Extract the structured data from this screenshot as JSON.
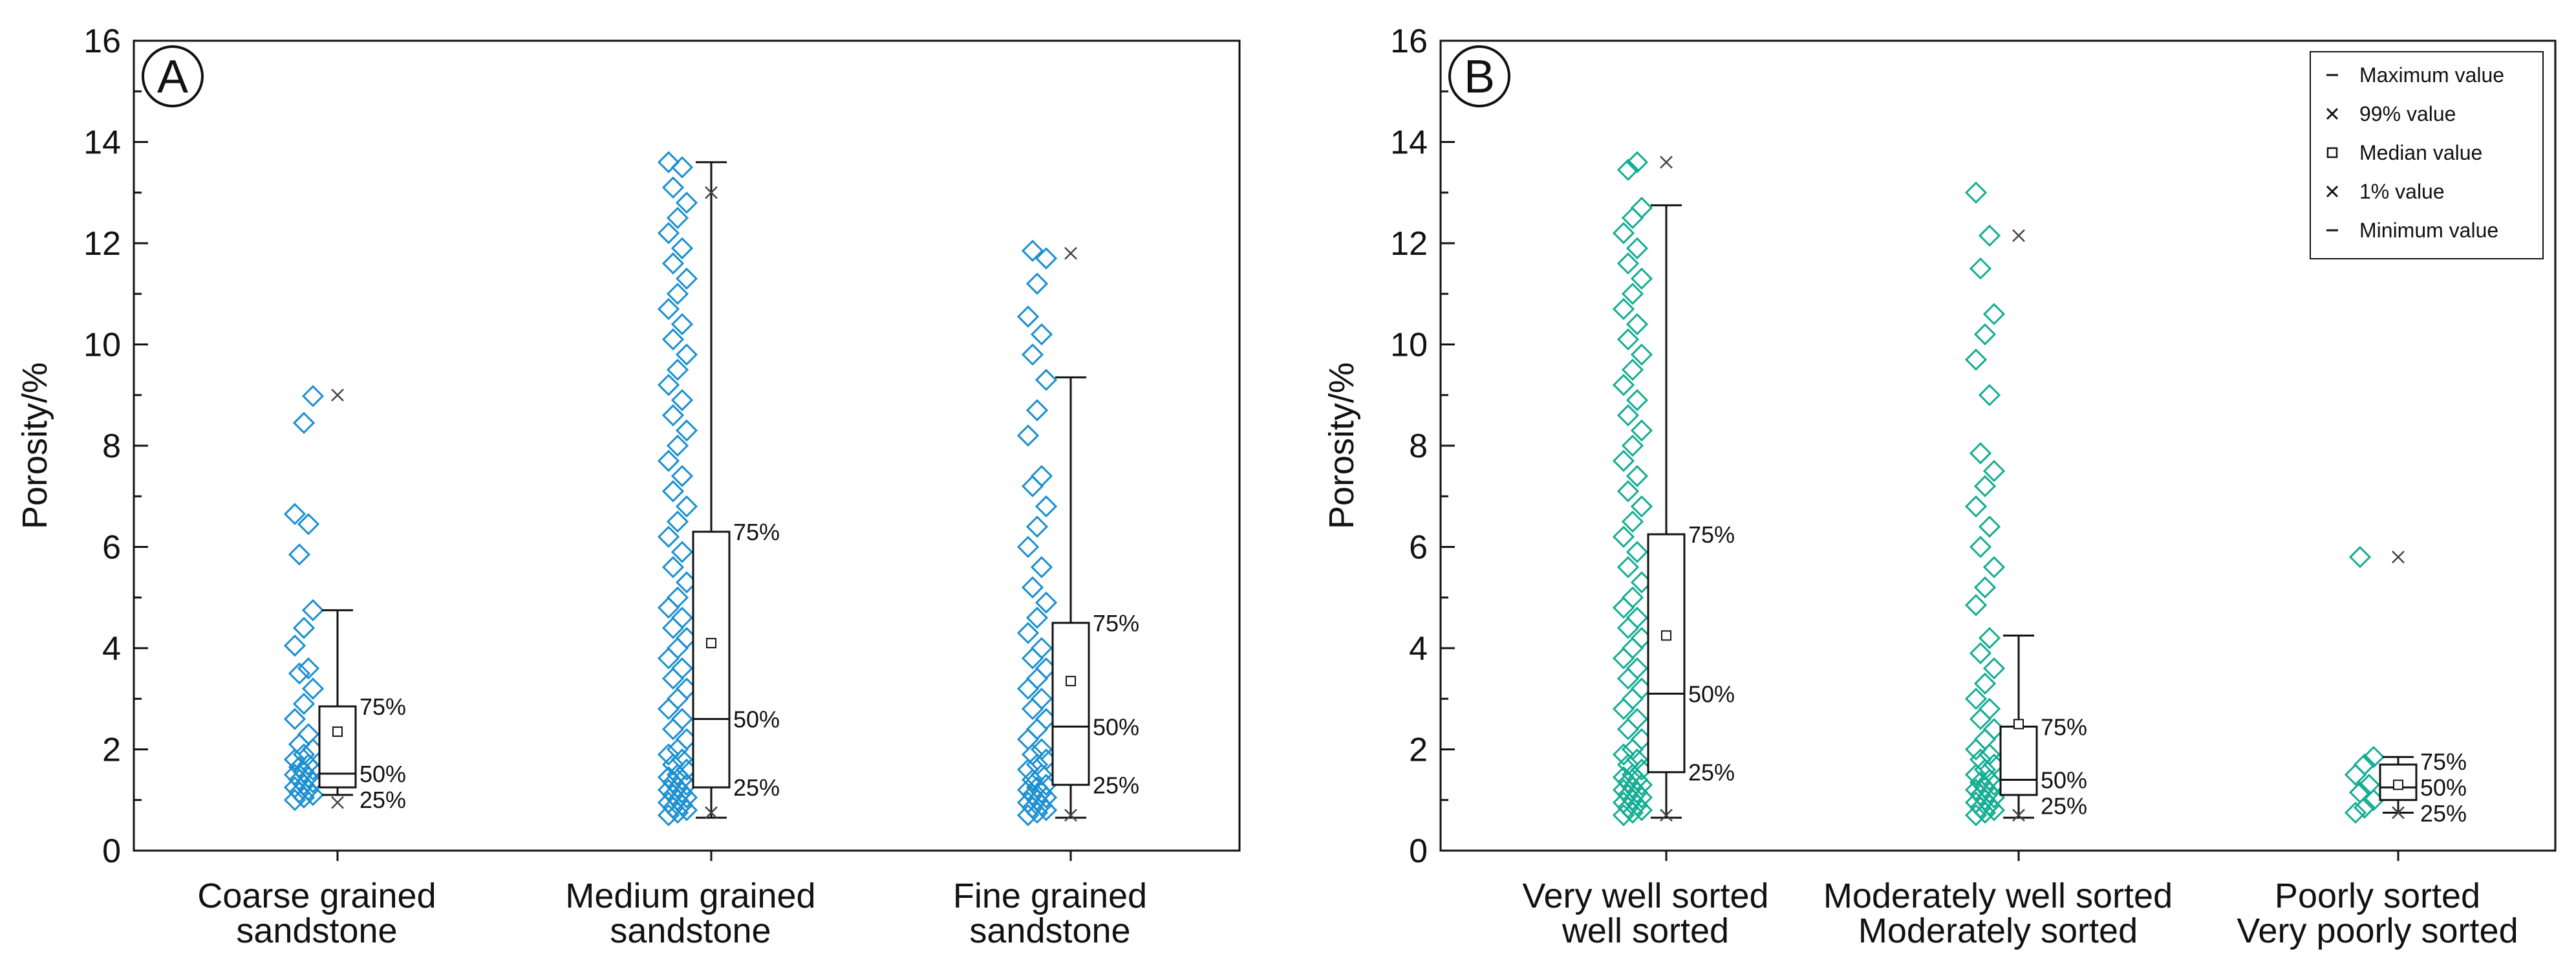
{
  "colors": {
    "panelA": "#1a8fd1",
    "panelB": "#13ad94",
    "ink": "#111111"
  },
  "legend": [
    {
      "symbol": "dash",
      "label": "Maximum value"
    },
    {
      "symbol": "cross",
      "label": "99% value"
    },
    {
      "symbol": "square",
      "label": "Median value"
    },
    {
      "symbol": "cross",
      "label": "1% value"
    },
    {
      "symbol": "dash",
      "label": "Minimum value"
    }
  ],
  "chart_data": [
    {
      "type": "box",
      "panel_label": "A",
      "ylabel": "Porosity/%",
      "ylim": [
        0,
        16
      ],
      "yticks": [
        0,
        2,
        4,
        6,
        8,
        10,
        12,
        14,
        16
      ],
      "percentile_labels": [
        "75%",
        "50%",
        "25%"
      ],
      "categories": [
        {
          "label_lines": [
            "Coarse grained",
            "sandstone"
          ],
          "p25": 1.25,
          "median": 1.52,
          "p75": 2.85,
          "mean": 2.35,
          "max": 4.75,
          "min": 1.1,
          "p99": 9.0,
          "p1": 0.95,
          "points": [
            1.0,
            1.05,
            1.1,
            1.15,
            1.2,
            1.25,
            1.3,
            1.35,
            1.4,
            1.45,
            1.5,
            1.55,
            1.6,
            1.65,
            1.7,
            1.8,
            1.9,
            2.0,
            2.1,
            2.3,
            2.6,
            2.9,
            3.2,
            3.5,
            3.6,
            4.05,
            4.4,
            4.75,
            5.85,
            6.45,
            6.65,
            8.45,
            8.98
          ]
        },
        {
          "label_lines": [
            "Medium grained",
            "sandstone"
          ],
          "p25": 1.25,
          "median": 2.6,
          "p75": 6.3,
          "mean": 4.1,
          "max": 13.6,
          "min": 0.65,
          "p99": 13.0,
          "p1": 0.75,
          "points": [
            0.7,
            0.75,
            0.8,
            0.85,
            0.9,
            0.95,
            1.0,
            1.05,
            1.1,
            1.15,
            1.2,
            1.25,
            1.3,
            1.35,
            1.4,
            1.45,
            1.5,
            1.6,
            1.7,
            1.8,
            1.9,
            2.0,
            2.2,
            2.4,
            2.6,
            2.8,
            3.0,
            3.2,
            3.4,
            3.6,
            3.8,
            4.0,
            4.2,
            4.4,
            4.6,
            4.8,
            5.0,
            5.3,
            5.6,
            5.9,
            6.2,
            6.5,
            6.8,
            7.1,
            7.4,
            7.7,
            8.0,
            8.3,
            8.6,
            8.9,
            9.2,
            9.5,
            9.8,
            10.1,
            10.4,
            10.7,
            11.0,
            11.3,
            11.6,
            11.9,
            12.2,
            12.5,
            12.8,
            13.1,
            13.5,
            13.6
          ]
        },
        {
          "label_lines": [
            "Fine grained",
            "sandstone"
          ],
          "p25": 1.3,
          "median": 2.45,
          "p75": 4.5,
          "mean": 3.35,
          "max": 9.35,
          "min": 0.65,
          "p99": 11.8,
          "p1": 0.7,
          "points": [
            0.7,
            0.75,
            0.8,
            0.85,
            0.9,
            0.95,
            1.0,
            1.05,
            1.1,
            1.15,
            1.2,
            1.25,
            1.3,
            1.4,
            1.5,
            1.6,
            1.7,
            1.8,
            1.9,
            2.0,
            2.2,
            2.4,
            2.6,
            2.8,
            3.0,
            3.2,
            3.4,
            3.6,
            3.8,
            4.0,
            4.3,
            4.6,
            4.9,
            5.2,
            5.6,
            6.0,
            6.4,
            6.8,
            7.2,
            7.4,
            8.2,
            8.7,
            9.3,
            9.8,
            10.2,
            10.55,
            11.2,
            11.7,
            11.85
          ]
        }
      ]
    },
    {
      "type": "box",
      "panel_label": "B",
      "ylabel": "Porosity/%",
      "ylim": [
        0,
        16
      ],
      "yticks": [
        0,
        2,
        4,
        6,
        8,
        10,
        12,
        14,
        16
      ],
      "percentile_labels": [
        "75%",
        "50%",
        "25%"
      ],
      "categories": [
        {
          "label_lines": [
            "Very well sorted",
            "well sorted"
          ],
          "p25": 1.55,
          "median": 3.1,
          "p75": 6.25,
          "mean": 4.25,
          "max": 12.75,
          "min": 0.65,
          "p99": 13.6,
          "p1": 0.7,
          "points": [
            0.7,
            0.75,
            0.8,
            0.85,
            0.9,
            0.95,
            1.0,
            1.05,
            1.1,
            1.15,
            1.2,
            1.25,
            1.3,
            1.35,
            1.4,
            1.45,
            1.5,
            1.6,
            1.7,
            1.8,
            1.9,
            2.0,
            2.2,
            2.4,
            2.6,
            2.8,
            3.0,
            3.2,
            3.4,
            3.6,
            3.8,
            4.0,
            4.2,
            4.4,
            4.6,
            4.8,
            5.0,
            5.3,
            5.6,
            5.9,
            6.2,
            6.5,
            6.8,
            7.1,
            7.4,
            7.7,
            8.0,
            8.3,
            8.6,
            8.9,
            9.2,
            9.5,
            9.8,
            10.1,
            10.4,
            10.7,
            11.0,
            11.3,
            11.6,
            11.9,
            12.2,
            12.5,
            12.7,
            13.45,
            13.6
          ]
        },
        {
          "label_lines": [
            "Moderately well sorted",
            "Moderately sorted"
          ],
          "p25": 1.1,
          "median": 1.4,
          "p75": 2.45,
          "mean": 2.5,
          "max": 4.25,
          "min": 0.65,
          "p99": 12.15,
          "p1": 0.7,
          "points": [
            0.7,
            0.75,
            0.8,
            0.85,
            0.9,
            0.95,
            1.0,
            1.05,
            1.1,
            1.15,
            1.2,
            1.25,
            1.3,
            1.35,
            1.4,
            1.5,
            1.6,
            1.7,
            1.8,
            1.9,
            2.0,
            2.2,
            2.4,
            2.6,
            2.8,
            3.0,
            3.3,
            3.6,
            3.9,
            4.2,
            4.85,
            5.2,
            5.6,
            6.0,
            6.4,
            6.8,
            7.2,
            7.5,
            7.85,
            9.0,
            9.7,
            10.2,
            10.6,
            11.5,
            12.15,
            13.0
          ]
        },
        {
          "label_lines": [
            "Poorly sorted",
            "Very poorly sorted"
          ],
          "p25": 1.0,
          "median": 1.25,
          "p75": 1.7,
          "mean": 1.3,
          "max": 1.85,
          "min": 0.75,
          "p99": 5.8,
          "p1": 0.75,
          "points": [
            0.75,
            0.85,
            1.0,
            1.15,
            1.3,
            1.5,
            1.7,
            1.85,
            5.8
          ]
        }
      ]
    }
  ]
}
